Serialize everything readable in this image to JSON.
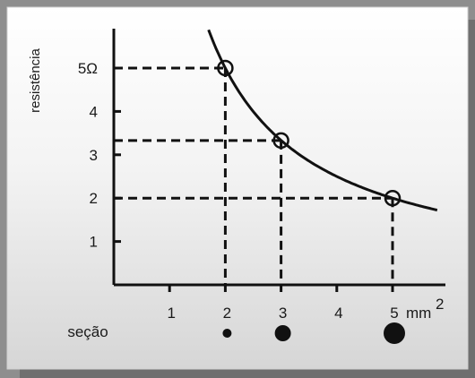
{
  "chart_data": {
    "type": "line",
    "title": "",
    "ylabel": "resistência",
    "xlabel": "",
    "x_unit": "mm",
    "x_unit_exp": "2",
    "y_unit_symbol": "Ω",
    "xlim": [
      0,
      5.8
    ],
    "ylim": [
      0,
      5.8
    ],
    "x_ticks": [
      1,
      2,
      3,
      4,
      5
    ],
    "y_ticks": [
      1,
      2,
      3,
      4,
      5
    ],
    "x_tick_labels": [
      "1",
      "2",
      "3",
      "4",
      "5"
    ],
    "y_tick_labels": [
      "1",
      "2",
      "3",
      "4",
      "5Ω"
    ],
    "curve": {
      "function": "R = 10 / A",
      "x_range": [
        1.7,
        5.8
      ]
    },
    "highlighted_points": [
      {
        "x": 2,
        "y": 5
      },
      {
        "x": 3,
        "y": 3.33
      },
      {
        "x": 5,
        "y": 2
      }
    ],
    "section_label": "seção",
    "section_markers": [
      {
        "x": 2,
        "size": "small"
      },
      {
        "x": 3,
        "size": "medium"
      },
      {
        "x": 5,
        "size": "large"
      }
    ],
    "grid": false,
    "legend": "none"
  }
}
